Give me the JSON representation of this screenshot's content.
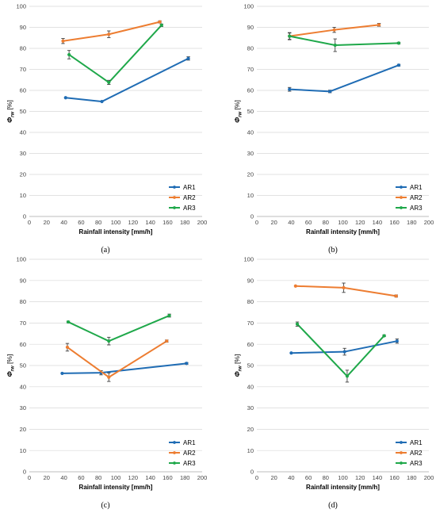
{
  "colors": {
    "AR1": "#1f6cb4",
    "AR2": "#ed7d31",
    "AR3": "#1fa84a",
    "grid": "#d9d9d9",
    "errorbar": "#404040"
  },
  "axes": {
    "xlabel": "Rainfall intensity [mm/h]",
    "ylabel_symbol": "Φ",
    "ylabel_subscript": "rw",
    "ylabel_unit": "[%]",
    "xticks": [
      0,
      20,
      40,
      60,
      80,
      100,
      120,
      140,
      160,
      180,
      200
    ],
    "yticks": [
      0,
      10,
      20,
      30,
      40,
      50,
      60,
      70,
      80,
      90,
      100
    ]
  },
  "chart_data": [
    {
      "type": "line",
      "caption": "(a)",
      "xlabel": "Rainfall intensity [mm/h]",
      "ylabel": "Φrw [%]",
      "xlim": [
        0,
        200
      ],
      "ylim": [
        0,
        100
      ],
      "grid": true,
      "legend": "bottom-right",
      "series": [
        {
          "name": "AR1",
          "x": [
            42,
            84,
            184
          ],
          "y": [
            56.5,
            54.7,
            75.2
          ],
          "err": [
            0,
            0,
            0.8
          ]
        },
        {
          "name": "AR2",
          "x": [
            39,
            92,
            151
          ],
          "y": [
            83.5,
            86.7,
            92.6
          ],
          "err": [
            1.2,
            1.6,
            0.5
          ]
        },
        {
          "name": "AR3",
          "x": [
            46,
            92,
            153
          ],
          "y": [
            77.0,
            63.8,
            91.0
          ],
          "err": [
            2.0,
            1.0,
            0.6
          ]
        }
      ]
    },
    {
      "type": "line",
      "caption": "(b)",
      "xlabel": "Rainfall intensity [mm/h]",
      "ylabel": "Φrw [%]",
      "xlim": [
        0,
        200
      ],
      "ylim": [
        0,
        100
      ],
      "grid": true,
      "legend": "bottom-right",
      "series": [
        {
          "name": "AR1",
          "x": [
            38,
            85,
            165
          ],
          "y": [
            60.5,
            59.5,
            72.0
          ],
          "err": [
            0.9,
            0.6,
            0.4
          ]
        },
        {
          "name": "AR2",
          "x": [
            38,
            90,
            142
          ],
          "y": [
            85.8,
            88.8,
            91.2
          ],
          "err": [
            1.5,
            1.2,
            0.7
          ]
        },
        {
          "name": "AR3",
          "x": [
            38,
            91,
            165
          ],
          "y": [
            85.8,
            81.5,
            82.5
          ],
          "err": [
            1.7,
            3.0,
            0.4
          ]
        }
      ]
    },
    {
      "type": "line",
      "caption": "(c)",
      "xlabel": "Rainfall intensity [mm/h]",
      "ylabel": "Φrw [%]",
      "xlim": [
        0,
        200
      ],
      "ylim": [
        0,
        100
      ],
      "grid": true,
      "legend": "bottom-right",
      "series": [
        {
          "name": "AR1",
          "x": [
            38,
            83,
            182
          ],
          "y": [
            46.3,
            46.6,
            51.0
          ],
          "err": [
            0,
            1.0,
            0.4
          ]
        },
        {
          "name": "AR2",
          "x": [
            44,
            92,
            159
          ],
          "y": [
            58.6,
            44.5,
            61.5
          ],
          "err": [
            1.8,
            2.0,
            0.5
          ]
        },
        {
          "name": "AR3",
          "x": [
            45,
            92,
            162
          ],
          "y": [
            70.5,
            61.5,
            73.5
          ],
          "err": [
            0.4,
            1.8,
            0.7
          ]
        }
      ]
    },
    {
      "type": "line",
      "caption": "(d)",
      "xlabel": "Rainfall intensity [mm/h]",
      "ylabel": "Φrw [%]",
      "xlim": [
        0,
        200
      ],
      "ylim": [
        0,
        100
      ],
      "grid": true,
      "legend": "bottom-right",
      "series": [
        {
          "name": "AR1",
          "x": [
            40,
            102,
            163
          ],
          "y": [
            55.9,
            56.5,
            61.5
          ],
          "err": [
            0,
            1.6,
            1.0
          ]
        },
        {
          "name": "AR2",
          "x": [
            45,
            101,
            162
          ],
          "y": [
            87.4,
            86.6,
            82.7
          ],
          "err": [
            0,
            2.2,
            0.5
          ]
        },
        {
          "name": "AR3",
          "x": [
            47,
            105,
            148
          ],
          "y": [
            69.5,
            45.0,
            64.0
          ],
          "err": [
            1.0,
            2.8,
            0.4
          ]
        }
      ]
    }
  ]
}
